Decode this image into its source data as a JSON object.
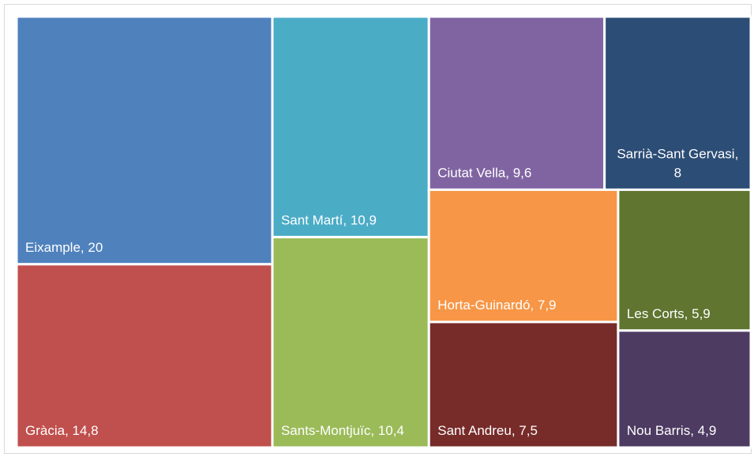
{
  "chart_data": {
    "type": "treemap",
    "categories": [
      "Eixample",
      "Gràcia",
      "Sant Martí",
      "Sants-Montjuïc",
      "Ciutat Vella",
      "Sarrià-Sant Gervasi",
      "Horta-Guinardó",
      "Sant Andreu",
      "Les Corts",
      "Nou Barris"
    ],
    "values": [
      20,
      14.8,
      10.9,
      10.4,
      9.6,
      8,
      7.9,
      7.5,
      5.9,
      4.9
    ],
    "value_labels": [
      "20",
      "14,8",
      "10,9",
      "10,4",
      "9,6",
      "8",
      "7,9",
      "7,5",
      "5,9",
      "4,9"
    ],
    "label_separator": ", ",
    "colors": [
      "#4f81bd",
      "#c0504d",
      "#4bacc6",
      "#9bbb59",
      "#8064a2",
      "#2c4d75",
      "#f79646",
      "#772c2a",
      "#5f7530",
      "#4d3b62"
    ]
  }
}
